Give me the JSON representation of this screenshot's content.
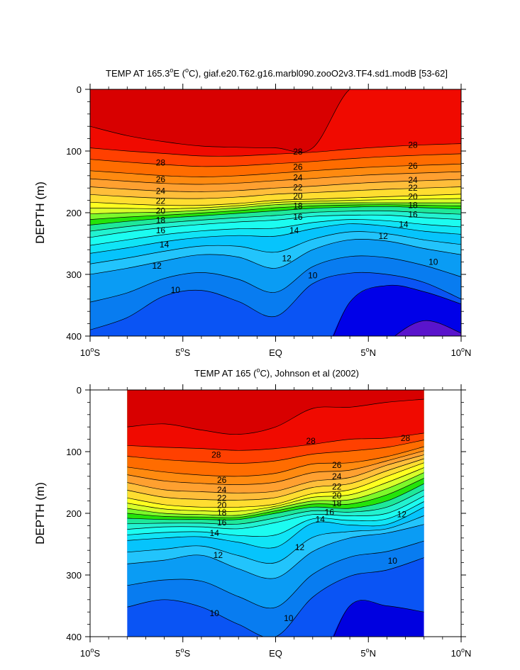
{
  "chart_data": [
    {
      "type": "contour",
      "title": "TEMP AT 165.3°E (°C), giaf.e20.T62.g16.marbl090.zooO2v3.TF4.sd1.modB [53-62]",
      "title_parts": {
        "pre": "TEMP AT 165.3",
        "deg1": "o",
        "mid": "E (",
        "deg2": "o",
        "post": "C), giaf.e20.T62.g16.marbl090.zooO2v3.TF4.sd1.modB [53-62]"
      },
      "ylabel": "DEPTH (m)",
      "xlim": [
        -10,
        10
      ],
      "ylim": [
        400,
        0
      ],
      "y_ticks": [
        "0",
        "100",
        "200",
        "300",
        "400"
      ],
      "data_extent_x": [
        -10,
        10
      ],
      "contour_levels": [
        8,
        9,
        10,
        11,
        12,
        13,
        14,
        15,
        16,
        17,
        18,
        19,
        20,
        21,
        22,
        23,
        24,
        25,
        26,
        27,
        28,
        29
      ],
      "isotherm_depths": {
        "lats": [
          -10,
          -8,
          -6,
          -4,
          -2,
          0,
          2,
          4,
          6,
          8,
          10
        ],
        "29": [
          60,
          75,
          85,
          92,
          94,
          95,
          95,
          0,
          0,
          0,
          0
        ],
        "28": [
          95,
          100,
          104,
          108,
          108,
          105,
          102,
          97,
          93,
          90,
          88
        ],
        "26": [
          132,
          136,
          140,
          142,
          140,
          136,
          132,
          128,
          125,
          123,
          121
        ],
        "24": [
          158,
          162,
          165,
          166,
          164,
          160,
          157,
          153,
          150,
          148,
          146
        ],
        "22": [
          183,
          186,
          188,
          188,
          185,
          180,
          178,
          176,
          174,
          172,
          170
        ],
        "20": [
          202,
          200,
          199,
          196,
          192,
          187,
          185,
          184,
          184,
          184,
          184
        ],
        "18": [
          220,
          214,
          209,
          205,
          201,
          197,
          193,
          191,
          190,
          192,
          194
        ],
        "16": [
          240,
          231,
          224,
          219,
          215,
          212,
          206,
          204,
          204,
          208,
          211
        ],
        "14": [
          266,
          257,
          247,
          240,
          237,
          238,
          226,
          218,
          222,
          230,
          235
        ],
        "12": [
          300,
          290,
          278,
          268,
          272,
          290,
          260,
          244,
          246,
          258,
          268
        ],
        "10": [
          390,
          370,
          335,
          326,
          344,
          368,
          315,
          298,
          300,
          313,
          340
        ],
        "9": [
          500,
          500,
          500,
          500,
          500,
          500,
          500,
          345,
          318,
          328,
          348
        ],
        "8": [
          500,
          500,
          500,
          500,
          500,
          500,
          500,
          500,
          410,
          375,
          395
        ]
      },
      "contour_labels": [
        {
          "text": "28",
          "x": -6.2,
          "y": 119
        },
        {
          "text": "28",
          "x": 1.2,
          "y": 101
        },
        {
          "text": "28",
          "x": 7.4,
          "y": 90
        },
        {
          "text": "26",
          "x": -6.2,
          "y": 146
        },
        {
          "text": "26",
          "x": 1.2,
          "y": 126
        },
        {
          "text": "26",
          "x": 7.4,
          "y": 124
        },
        {
          "text": "24",
          "x": -6.2,
          "y": 165
        },
        {
          "text": "24",
          "x": 1.2,
          "y": 143
        },
        {
          "text": "24",
          "x": 7.4,
          "y": 147
        },
        {
          "text": "22",
          "x": -6.2,
          "y": 181
        },
        {
          "text": "22",
          "x": 1.2,
          "y": 159
        },
        {
          "text": "22",
          "x": 7.4,
          "y": 160
        },
        {
          "text": "20",
          "x": -6.2,
          "y": 197
        },
        {
          "text": "20",
          "x": 1.2,
          "y": 173
        },
        {
          "text": "20",
          "x": 7.4,
          "y": 174
        },
        {
          "text": "18",
          "x": -6.2,
          "y": 212
        },
        {
          "text": "18",
          "x": 1.2,
          "y": 189
        },
        {
          "text": "18",
          "x": 7.4,
          "y": 188
        },
        {
          "text": "16",
          "x": -6.2,
          "y": 229
        },
        {
          "text": "16",
          "x": 1.2,
          "y": 207
        },
        {
          "text": "16",
          "x": 7.4,
          "y": 203
        },
        {
          "text": "14",
          "x": -6.0,
          "y": 252
        },
        {
          "text": "14",
          "x": 1.0,
          "y": 229
        },
        {
          "text": "14",
          "x": 6.9,
          "y": 219
        },
        {
          "text": "12",
          "x": -6.4,
          "y": 286
        },
        {
          "text": "12",
          "x": 0.6,
          "y": 274
        },
        {
          "text": "12",
          "x": 5.8,
          "y": 238
        },
        {
          "text": "10",
          "x": -5.4,
          "y": 325
        },
        {
          "text": "10",
          "x": 2.0,
          "y": 302
        },
        {
          "text": "10",
          "x": 8.5,
          "y": 280
        }
      ]
    },
    {
      "type": "contour",
      "title": "TEMP AT 165 (°C), Johnson et al (2002)",
      "title_parts": {
        "pre": "TEMP AT 165 (",
        "deg1": "o",
        "mid": "C), Johnson et al (2002)",
        "deg2": "",
        "post": ""
      },
      "ylabel": "DEPTH (m)",
      "xlim": [
        -10,
        10
      ],
      "ylim": [
        400,
        0
      ],
      "y_ticks": [
        "0",
        "100",
        "200",
        "300",
        "400"
      ],
      "data_extent_x": [
        -8,
        8
      ],
      "contour_levels": [
        9,
        10,
        11,
        12,
        13,
        14,
        15,
        16,
        17,
        18,
        19,
        20,
        21,
        22,
        23,
        24,
        25,
        26,
        27,
        28,
        29
      ],
      "isotherm_depths": {
        "lats": [
          -8,
          -6,
          -4,
          -2,
          0,
          2,
          4,
          6,
          8
        ],
        "29": [
          60,
          55,
          65,
          72,
          60,
          30,
          28,
          20,
          15
        ],
        "28": [
          90,
          93,
          95,
          98,
          95,
          88,
          80,
          78,
          70
        ],
        "26": [
          125,
          133,
          138,
          140,
          135,
          120,
          118,
          108,
          92
        ],
        "24": [
          150,
          162,
          165,
          167,
          164,
          148,
          142,
          122,
          105
        ],
        "22": [
          175,
          186,
          190,
          190,
          185,
          168,
          162,
          140,
          118
        ],
        "20": [
          192,
          200,
          202,
          203,
          192,
          180,
          178,
          160,
          134
        ],
        "18": [
          208,
          210,
          210,
          210,
          200,
          190,
          192,
          180,
          152
        ],
        "16": [
          226,
          222,
          222,
          225,
          215,
          202,
          204,
          200,
          172
        ],
        "14": [
          244,
          240,
          238,
          247,
          255,
          216,
          219,
          218,
          190
        ],
        "12": [
          282,
          276,
          268,
          290,
          305,
          262,
          240,
          232,
          218
        ],
        "10": [
          352,
          340,
          352,
          380,
          400,
          336,
          302,
          292,
          272
        ],
        "9": [
          500,
          500,
          500,
          500,
          500,
          500,
          350,
          350,
          360
        ]
      },
      "contour_labels": [
        {
          "text": "28",
          "x": -3.2,
          "y": 105
        },
        {
          "text": "28",
          "x": 1.9,
          "y": 83
        },
        {
          "text": "28",
          "x": 7.0,
          "y": 78
        },
        {
          "text": "26",
          "x": -2.9,
          "y": 146
        },
        {
          "text": "26",
          "x": 3.3,
          "y": 122
        },
        {
          "text": "24",
          "x": -2.9,
          "y": 162
        },
        {
          "text": "24",
          "x": 3.3,
          "y": 140
        },
        {
          "text": "22",
          "x": -2.9,
          "y": 175
        },
        {
          "text": "22",
          "x": 3.3,
          "y": 157
        },
        {
          "text": "20",
          "x": -2.9,
          "y": 187
        },
        {
          "text": "20",
          "x": 3.3,
          "y": 171
        },
        {
          "text": "18",
          "x": -2.9,
          "y": 199
        },
        {
          "text": "18",
          "x": 3.3,
          "y": 184
        },
        {
          "text": "16",
          "x": -2.9,
          "y": 215
        },
        {
          "text": "16",
          "x": 2.9,
          "y": 198
        },
        {
          "text": "14",
          "x": -3.3,
          "y": 232
        },
        {
          "text": "14",
          "x": 2.4,
          "y": 210
        },
        {
          "text": "12",
          "x": -3.1,
          "y": 268
        },
        {
          "text": "12",
          "x": 1.3,
          "y": 255
        },
        {
          "text": "12",
          "x": 6.8,
          "y": 202
        },
        {
          "text": "10",
          "x": -3.3,
          "y": 362
        },
        {
          "text": "10",
          "x": 0.7,
          "y": 370
        },
        {
          "text": "10",
          "x": 6.3,
          "y": 277
        }
      ]
    }
  ],
  "x_ticks": [
    {
      "value": -10,
      "num": "10",
      "hem": "S"
    },
    {
      "value": -5,
      "num": "5",
      "hem": "S"
    },
    {
      "value": 0,
      "num": "EQ",
      "hem": ""
    },
    {
      "value": 5,
      "num": "5",
      "hem": "N"
    },
    {
      "value": 10,
      "num": "10",
      "hem": "N"
    }
  ],
  "colors": {
    "29": "#d80000",
    "28": "#f00a00",
    "27": "#ff4000",
    "26": "#ff6c00",
    "25": "#ff8a10",
    "24": "#ffa030",
    "23": "#ffbe3a",
    "22": "#ffdd30",
    "21": "#ffff20",
    "20": "#d8ff2a",
    "19": "#7cf82a",
    "18": "#24e40a",
    "17": "#1ee89a",
    "16": "#22f2d0",
    "15": "#1cfcf0",
    "14": "#10e4f6",
    "13": "#06c4fc",
    "12": "#22c4fc",
    "11": "#0a9cf4",
    "10": "#087cf0",
    "9": "#0a54f4",
    "8": "#0000e8",
    "7": "#5a14cc",
    "deep": "#0000e0"
  }
}
